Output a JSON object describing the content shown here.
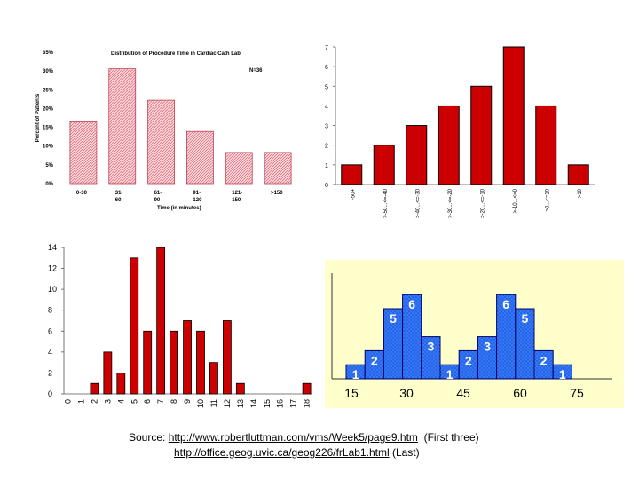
{
  "chart_data": [
    {
      "id": "c1",
      "type": "bar",
      "title": "Distribution of Procedure Time in Cardiac Cath Lab",
      "annotation": "N=36",
      "xlabel": "Time (in minutes)",
      "ylabel": "Percent of Patients",
      "ylim": [
        0,
        35
      ],
      "yticks": [
        "0%",
        "5%",
        "10%",
        "15%",
        "20%",
        "25%",
        "30%",
        "35%"
      ],
      "categories": [
        [
          "0-30"
        ],
        [
          "31-",
          "60"
        ],
        [
          "61-",
          "90"
        ],
        [
          "91-",
          "120"
        ],
        [
          "121-",
          "150"
        ],
        [
          ">150"
        ]
      ],
      "values": [
        16.7,
        30.6,
        22.2,
        13.9,
        8.3,
        8.3
      ],
      "colors": {
        "fill": "#fadadd",
        "hatch": "#e07080",
        "stroke": "#c04050"
      }
    },
    {
      "id": "c2",
      "type": "bar",
      "ylim": [
        0,
        7
      ],
      "yticks": [
        "0",
        "1",
        "2",
        "3",
        "4",
        "5",
        "6",
        "7"
      ],
      "categories": [
        "-50+",
        ">-50...<=-40",
        ">-40...<=-30",
        ">-30...<=-20",
        ">-20...<=-10",
        ">-10...<=0",
        ">0...<=10",
        ">10"
      ],
      "values": [
        1,
        2,
        3,
        4,
        5,
        7,
        4,
        1
      ],
      "colors": {
        "bar": "#cc0000",
        "stroke": "#000000"
      }
    },
    {
      "id": "c3",
      "type": "bar",
      "ylim": [
        0,
        14
      ],
      "yticks": [
        "0",
        "2",
        "4",
        "6",
        "8",
        "10",
        "12",
        "14"
      ],
      "categories": [
        "0",
        "1",
        "2",
        "3",
        "4",
        "5",
        "6",
        "7",
        "8",
        "9",
        "10",
        "11",
        "12",
        "13",
        "14",
        "15",
        "16",
        "17",
        "18"
      ],
      "values": [
        0,
        0,
        1,
        4,
        2,
        13,
        6,
        14,
        6,
        7,
        6,
        3,
        7,
        1,
        0,
        0,
        0,
        0,
        1
      ],
      "colors": {
        "bar": "#cc0000",
        "stroke": "#000000"
      }
    },
    {
      "id": "c4",
      "type": "bar",
      "xticks": [
        "15",
        "30",
        "45",
        "60",
        "75"
      ],
      "values": [
        1,
        2,
        5,
        6,
        3,
        1,
        2,
        3,
        6,
        5,
        2,
        1
      ],
      "colors": {
        "background": "#ffffcc",
        "bar": "#2266ee",
        "dots": "#9bbcf6",
        "stroke": "#000066",
        "label": "#ffffff"
      }
    }
  ],
  "source": {
    "prefix": "Source: ",
    "url1": "http://www.robertluttman.com/vms/Week5/page9.htm",
    "note1": "  (First three)",
    "url2": "http://office.geog.uvic.ca/geog226/frLab1.html",
    "note2": " (Last)"
  }
}
